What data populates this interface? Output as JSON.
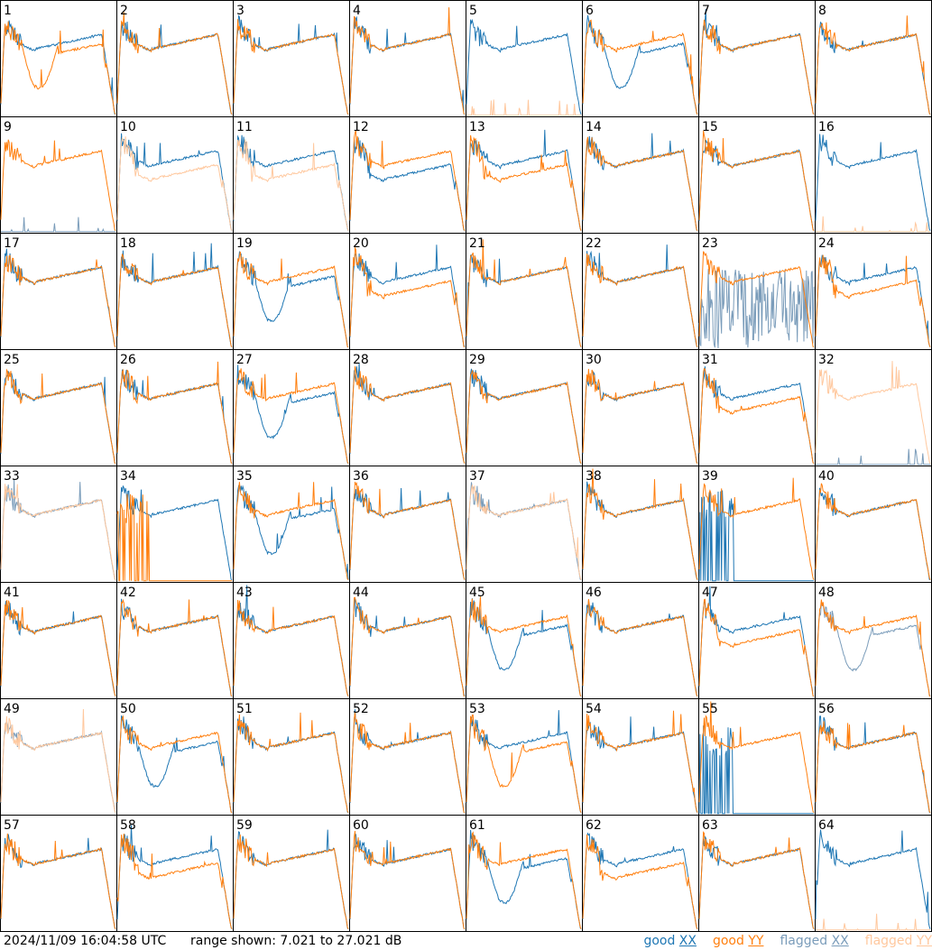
{
  "footer": {
    "timestamp": "2024/11/09 16:04:58 UTC",
    "range": "range shown: 7.021 to 27.021 dB"
  },
  "legend": [
    {
      "state": "good ",
      "pol": "XX",
      "color": "#1f77b4"
    },
    {
      "state": "good ",
      "pol": "YY",
      "color": "#ff7f0e"
    },
    {
      "state": "flagged ",
      "pol": "XX",
      "color": "#7a9cba"
    },
    {
      "state": "flagged ",
      "pol": "YY",
      "color": "#ffc89e"
    }
  ],
  "colors": {
    "good_xx": "#1f77b4",
    "good_yy": "#ff7f0e",
    "flagged_xx": "#7a9cba",
    "flagged_yy": "#ffc89e"
  },
  "chart_data": {
    "type": "line",
    "layout": "8x8 small-multiple grid of per-antenna spectra",
    "ylim_db": [
      7.021,
      27.021
    ],
    "xlabel": "",
    "ylabel": "",
    "series_names": [
      "XX",
      "YY"
    ],
    "panels": [
      {
        "id": "1",
        "xx": "good",
        "yy": "good",
        "shape_xx": "normal",
        "shape_yy": "dip"
      },
      {
        "id": "2",
        "xx": "good",
        "yy": "good",
        "shape_xx": "normal",
        "shape_yy": "normal"
      },
      {
        "id": "3",
        "xx": "good",
        "yy": "good",
        "shape_xx": "normal",
        "shape_yy": "normal"
      },
      {
        "id": "4",
        "xx": "good",
        "yy": "good",
        "shape_xx": "normal",
        "shape_yy": "normal"
      },
      {
        "id": "5",
        "xx": "good",
        "yy": "flagged",
        "shape_xx": "normal",
        "shape_yy": "flat"
      },
      {
        "id": "6",
        "xx": "good",
        "yy": "good",
        "shape_xx": "dip",
        "shape_yy": "normal"
      },
      {
        "id": "7",
        "xx": "good",
        "yy": "good",
        "shape_xx": "normal",
        "shape_yy": "normal"
      },
      {
        "id": "8",
        "xx": "good",
        "yy": "good",
        "shape_xx": "normal",
        "shape_yy": "normal"
      },
      {
        "id": "9",
        "xx": "flagged",
        "yy": "good",
        "shape_xx": "flat",
        "shape_yy": "normal"
      },
      {
        "id": "10",
        "xx": "good",
        "yy": "flagged",
        "shape_xx": "normal",
        "shape_yy": "low"
      },
      {
        "id": "11",
        "xx": "good",
        "yy": "flagged",
        "shape_xx": "normal",
        "shape_yy": "low"
      },
      {
        "id": "12",
        "xx": "good",
        "yy": "good",
        "shape_xx": "low",
        "shape_yy": "normal"
      },
      {
        "id": "13",
        "xx": "good",
        "yy": "good",
        "shape_xx": "normal",
        "shape_yy": "low"
      },
      {
        "id": "14",
        "xx": "good",
        "yy": "good",
        "shape_xx": "normal",
        "shape_yy": "normal"
      },
      {
        "id": "15",
        "xx": "good",
        "yy": "good",
        "shape_xx": "normal",
        "shape_yy": "normal"
      },
      {
        "id": "16",
        "xx": "good",
        "yy": "flagged",
        "shape_xx": "normal",
        "shape_yy": "flat"
      },
      {
        "id": "17",
        "xx": "good",
        "yy": "good",
        "shape_xx": "normal",
        "shape_yy": "normal"
      },
      {
        "id": "18",
        "xx": "good",
        "yy": "good",
        "shape_xx": "normal",
        "shape_yy": "normal"
      },
      {
        "id": "19",
        "xx": "good",
        "yy": "good",
        "shape_xx": "dip",
        "shape_yy": "normal"
      },
      {
        "id": "20",
        "xx": "good",
        "yy": "good",
        "shape_xx": "normal",
        "shape_yy": "low"
      },
      {
        "id": "21",
        "xx": "good",
        "yy": "good",
        "shape_xx": "normal",
        "shape_yy": "normal"
      },
      {
        "id": "22",
        "xx": "good",
        "yy": "good",
        "shape_xx": "normal",
        "shape_yy": "normal"
      },
      {
        "id": "23",
        "xx": "flagged",
        "yy": "good",
        "shape_xx": "noisy",
        "shape_yy": "normal"
      },
      {
        "id": "24",
        "xx": "good",
        "yy": "good",
        "shape_xx": "normal",
        "shape_yy": "low"
      },
      {
        "id": "25",
        "xx": "good",
        "yy": "good",
        "shape_xx": "normal",
        "shape_yy": "normal"
      },
      {
        "id": "26",
        "xx": "good",
        "yy": "good",
        "shape_xx": "normal",
        "shape_yy": "normal"
      },
      {
        "id": "27",
        "xx": "good",
        "yy": "good",
        "shape_xx": "dip",
        "shape_yy": "normal"
      },
      {
        "id": "28",
        "xx": "good",
        "yy": "good",
        "shape_xx": "normal",
        "shape_yy": "normal"
      },
      {
        "id": "29",
        "xx": "good",
        "yy": "good",
        "shape_xx": "normal",
        "shape_yy": "normal"
      },
      {
        "id": "30",
        "xx": "good",
        "yy": "good",
        "shape_xx": "normal",
        "shape_yy": "normal"
      },
      {
        "id": "31",
        "xx": "good",
        "yy": "good",
        "shape_xx": "normal",
        "shape_yy": "low"
      },
      {
        "id": "32",
        "xx": "flagged",
        "yy": "flagged",
        "shape_xx": "flat",
        "shape_yy": "normal"
      },
      {
        "id": "33",
        "xx": "flagged",
        "yy": "flagged",
        "shape_xx": "normal",
        "shape_yy": "normal"
      },
      {
        "id": "34",
        "xx": "good",
        "yy": "good",
        "shape_xx": "normal",
        "shape_yy": "spike"
      },
      {
        "id": "35",
        "xx": "good",
        "yy": "good",
        "shape_xx": "dip",
        "shape_yy": "normal"
      },
      {
        "id": "36",
        "xx": "good",
        "yy": "good",
        "shape_xx": "normal",
        "shape_yy": "normal"
      },
      {
        "id": "37",
        "xx": "flagged",
        "yy": "flagged",
        "shape_xx": "normal",
        "shape_yy": "normal"
      },
      {
        "id": "38",
        "xx": "good",
        "yy": "good",
        "shape_xx": "normal",
        "shape_yy": "normal"
      },
      {
        "id": "39",
        "xx": "good",
        "yy": "good",
        "shape_xx": "spike",
        "shape_yy": "normal"
      },
      {
        "id": "40",
        "xx": "good",
        "yy": "good",
        "shape_xx": "normal",
        "shape_yy": "normal"
      },
      {
        "id": "41",
        "xx": "good",
        "yy": "good",
        "shape_xx": "normal",
        "shape_yy": "normal"
      },
      {
        "id": "42",
        "xx": "good",
        "yy": "good",
        "shape_xx": "normal",
        "shape_yy": "normal"
      },
      {
        "id": "43",
        "xx": "good",
        "yy": "good",
        "shape_xx": "normal",
        "shape_yy": "normal"
      },
      {
        "id": "44",
        "xx": "good",
        "yy": "good",
        "shape_xx": "normal",
        "shape_yy": "normal"
      },
      {
        "id": "45",
        "xx": "good",
        "yy": "good",
        "shape_xx": "dip",
        "shape_yy": "normal"
      },
      {
        "id": "46",
        "xx": "good",
        "yy": "good",
        "shape_xx": "normal",
        "shape_yy": "normal"
      },
      {
        "id": "47",
        "xx": "good",
        "yy": "good",
        "shape_xx": "normal",
        "shape_yy": "low"
      },
      {
        "id": "48",
        "xx": "flagged",
        "yy": "good",
        "shape_xx": "dip",
        "shape_yy": "normal"
      },
      {
        "id": "49",
        "xx": "flagged",
        "yy": "flagged",
        "shape_xx": "normal",
        "shape_yy": "normal"
      },
      {
        "id": "50",
        "xx": "good",
        "yy": "good",
        "shape_xx": "dip",
        "shape_yy": "normal"
      },
      {
        "id": "51",
        "xx": "good",
        "yy": "good",
        "shape_xx": "normal",
        "shape_yy": "normal"
      },
      {
        "id": "52",
        "xx": "good",
        "yy": "good",
        "shape_xx": "normal",
        "shape_yy": "normal"
      },
      {
        "id": "53",
        "xx": "good",
        "yy": "good",
        "shape_xx": "normal",
        "shape_yy": "dip"
      },
      {
        "id": "54",
        "xx": "good",
        "yy": "good",
        "shape_xx": "normal",
        "shape_yy": "normal"
      },
      {
        "id": "55",
        "xx": "good",
        "yy": "good",
        "shape_xx": "spike",
        "shape_yy": "normal"
      },
      {
        "id": "56",
        "xx": "good",
        "yy": "good",
        "shape_xx": "normal",
        "shape_yy": "normal"
      },
      {
        "id": "57",
        "xx": "good",
        "yy": "good",
        "shape_xx": "normal",
        "shape_yy": "normal"
      },
      {
        "id": "58",
        "xx": "good",
        "yy": "good",
        "shape_xx": "normal",
        "shape_yy": "low"
      },
      {
        "id": "59",
        "xx": "good",
        "yy": "good",
        "shape_xx": "normal",
        "shape_yy": "normal"
      },
      {
        "id": "60",
        "xx": "good",
        "yy": "good",
        "shape_xx": "normal",
        "shape_yy": "normal"
      },
      {
        "id": "61",
        "xx": "good",
        "yy": "good",
        "shape_xx": "dip",
        "shape_yy": "normal"
      },
      {
        "id": "62",
        "xx": "good",
        "yy": "good",
        "shape_xx": "normal",
        "shape_yy": "low"
      },
      {
        "id": "63",
        "xx": "good",
        "yy": "good",
        "shape_xx": "normal",
        "shape_yy": "normal"
      },
      {
        "id": "64",
        "xx": "good",
        "yy": "flagged",
        "shape_xx": "normal",
        "shape_yy": "flat"
      }
    ]
  }
}
